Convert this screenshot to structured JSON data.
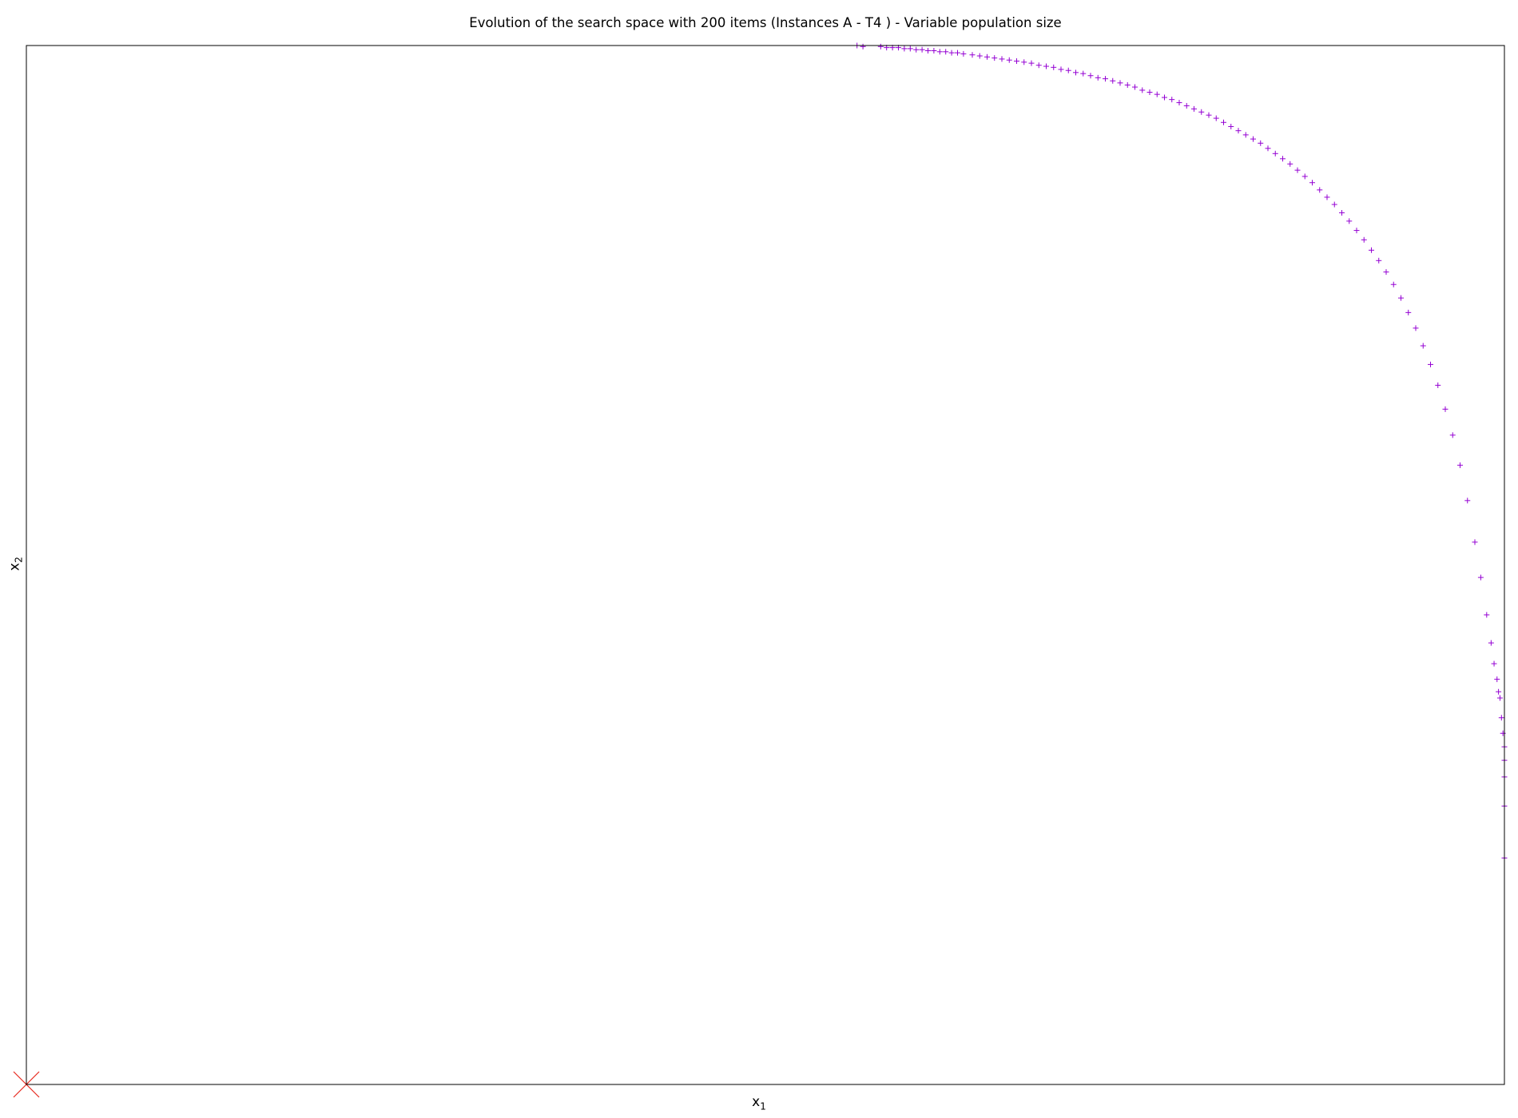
{
  "chart_data": {
    "type": "scatter",
    "title": "Evolution of the search space with 200 items (Instances A - T4 ) - Variable population size",
    "xlabel": {
      "base": "x",
      "sub": "1"
    },
    "ylabel": {
      "base": "x",
      "sub": "2"
    },
    "x_ticks": "none",
    "y_ticks": "none",
    "grid": false,
    "legend": "none",
    "xlim": [
      0,
      1
    ],
    "ylim": [
      0,
      1
    ],
    "series": [
      {
        "marker": "+",
        "color": "#9400d3",
        "points": [
          [
            0.562,
            1.0
          ],
          [
            0.566,
            0.999
          ],
          [
            0.578,
            0.999
          ],
          [
            0.582,
            0.998
          ],
          [
            0.586,
            0.998
          ],
          [
            0.59,
            0.998
          ],
          [
            0.594,
            0.997
          ],
          [
            0.598,
            0.997
          ],
          [
            0.602,
            0.996
          ],
          [
            0.606,
            0.996
          ],
          [
            0.61,
            0.995
          ],
          [
            0.614,
            0.995
          ],
          [
            0.618,
            0.994
          ],
          [
            0.622,
            0.994
          ],
          [
            0.626,
            0.993
          ],
          [
            0.63,
            0.993
          ],
          [
            0.634,
            0.992
          ],
          [
            0.64,
            0.991
          ],
          [
            0.645,
            0.99
          ],
          [
            0.65,
            0.989
          ],
          [
            0.655,
            0.988
          ],
          [
            0.66,
            0.987
          ],
          [
            0.665,
            0.986
          ],
          [
            0.67,
            0.985
          ],
          [
            0.675,
            0.984
          ],
          [
            0.68,
            0.983
          ],
          [
            0.685,
            0.981
          ],
          [
            0.69,
            0.98
          ],
          [
            0.695,
            0.979
          ],
          [
            0.7,
            0.977
          ],
          [
            0.705,
            0.976
          ],
          [
            0.71,
            0.974
          ],
          [
            0.715,
            0.973
          ],
          [
            0.72,
            0.971
          ],
          [
            0.725,
            0.969
          ],
          [
            0.73,
            0.968
          ],
          [
            0.735,
            0.966
          ],
          [
            0.74,
            0.964
          ],
          [
            0.745,
            0.962
          ],
          [
            0.75,
            0.96
          ],
          [
            0.755,
            0.957
          ],
          [
            0.76,
            0.955
          ],
          [
            0.765,
            0.953
          ],
          [
            0.77,
            0.95
          ],
          [
            0.775,
            0.948
          ],
          [
            0.78,
            0.945
          ],
          [
            0.785,
            0.942
          ],
          [
            0.79,
            0.939
          ],
          [
            0.795,
            0.936
          ],
          [
            0.8,
            0.933
          ],
          [
            0.805,
            0.93
          ],
          [
            0.81,
            0.926
          ],
          [
            0.815,
            0.922
          ],
          [
            0.82,
            0.918
          ],
          [
            0.825,
            0.914
          ],
          [
            0.83,
            0.91
          ],
          [
            0.835,
            0.906
          ],
          [
            0.84,
            0.901
          ],
          [
            0.845,
            0.896
          ],
          [
            0.85,
            0.891
          ],
          [
            0.855,
            0.886
          ],
          [
            0.86,
            0.88
          ],
          [
            0.865,
            0.874
          ],
          [
            0.87,
            0.868
          ],
          [
            0.875,
            0.861
          ],
          [
            0.88,
            0.854
          ],
          [
            0.885,
            0.847
          ],
          [
            0.89,
            0.839
          ],
          [
            0.895,
            0.831
          ],
          [
            0.9,
            0.822
          ],
          [
            0.905,
            0.813
          ],
          [
            0.91,
            0.803
          ],
          [
            0.915,
            0.793
          ],
          [
            0.92,
            0.782
          ],
          [
            0.925,
            0.77
          ],
          [
            0.93,
            0.757
          ],
          [
            0.935,
            0.743
          ],
          [
            0.94,
            0.728
          ],
          [
            0.945,
            0.711
          ],
          [
            0.95,
            0.693
          ],
          [
            0.955,
            0.673
          ],
          [
            0.96,
            0.65
          ],
          [
            0.965,
            0.625
          ],
          [
            0.97,
            0.596
          ],
          [
            0.975,
            0.562
          ],
          [
            0.98,
            0.522
          ],
          [
            0.984,
            0.488
          ],
          [
            0.988,
            0.452
          ],
          [
            0.991,
            0.425
          ],
          [
            0.993,
            0.405
          ],
          [
            0.995,
            0.39
          ],
          [
            0.996,
            0.378
          ],
          [
            0.997,
            0.372
          ],
          [
            0.998,
            0.353
          ],
          [
            0.999,
            0.338
          ],
          [
            1.0,
            0.325
          ],
          [
            1.0,
            0.312
          ],
          [
            1.0,
            0.296
          ],
          [
            1.0,
            0.268
          ],
          [
            1.0,
            0.218
          ]
        ]
      },
      {
        "marker": "x",
        "color": "#e8281e",
        "points": [
          [
            0.0,
            0.0
          ]
        ]
      }
    ]
  }
}
